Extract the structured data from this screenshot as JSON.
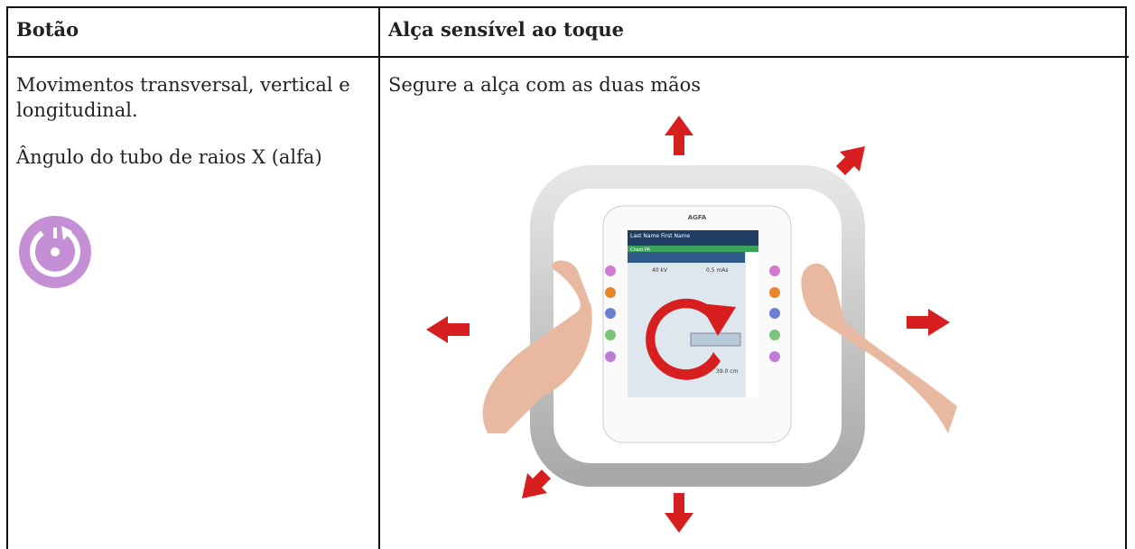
{
  "table": {
    "header": [
      "Botão",
      "Alça sensível ao toque"
    ],
    "rows": [
      [
        [
          "Movimentos transversal, vertical e longitudinal.",
          "Ângulo do tubo de raios X (alfa)"
        ],
        [
          "Segure a alça com as duas mãos"
        ]
      ]
    ]
  },
  "device_screen": {
    "brand": "AGFA",
    "patient": "Last Name First Name",
    "exam": "Chest PA",
    "kv": "40 kV",
    "mas": "0.5 mAs",
    "distance": "39.0 cm"
  }
}
